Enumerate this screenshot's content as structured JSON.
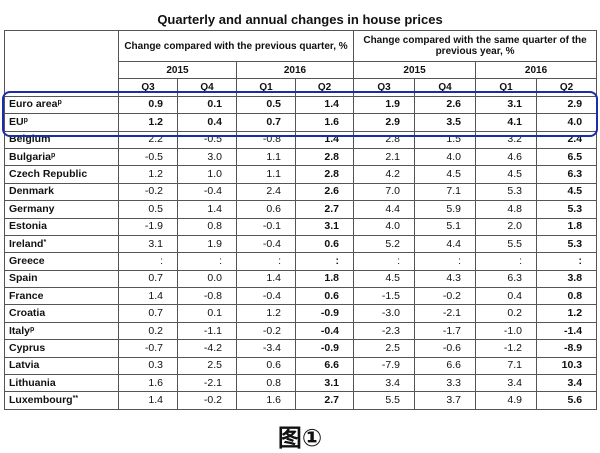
{
  "title": "Quarterly and annual changes in house prices",
  "header": {
    "group1": "Change compared with the previous quarter, %",
    "group2": "Change compared with the same quarter of the previous year, %",
    "year2015": "2015",
    "year2016": "2016",
    "quarters": [
      "Q3",
      "Q4",
      "Q1",
      "Q2",
      "Q3",
      "Q4",
      "Q1",
      "Q2"
    ]
  },
  "rows": [
    {
      "name": "Euro area",
      "sup": "p",
      "values": [
        "0.9",
        "0.1",
        "0.5",
        "1.4",
        "1.9",
        "2.6",
        "3.1",
        "2.9"
      ]
    },
    {
      "name": "EU",
      "sup": "p",
      "values": [
        "1.2",
        "0.4",
        "0.7",
        "1.6",
        "2.9",
        "3.5",
        "4.1",
        "4.0"
      ]
    },
    {
      "name": "Belgium",
      "sup": "",
      "values": [
        "2.2",
        "-0.5",
        "-0.8",
        "1.4",
        "2.8",
        "1.5",
        "3.2",
        "2.4"
      ]
    },
    {
      "name": "Bulgaria",
      "sup": "p",
      "values": [
        "-0.5",
        "3.0",
        "1.1",
        "2.8",
        "2.1",
        "4.0",
        "4.6",
        "6.5"
      ]
    },
    {
      "name": "Czech Republic",
      "sup": "",
      "values": [
        "1.2",
        "1.0",
        "1.1",
        "2.8",
        "4.2",
        "4.5",
        "4.5",
        "6.3"
      ]
    },
    {
      "name": "Denmark",
      "sup": "",
      "values": [
        "-0.2",
        "-0.4",
        "2.4",
        "2.6",
        "7.0",
        "7.1",
        "5.3",
        "4.5"
      ]
    },
    {
      "name": "Germany",
      "sup": "",
      "values": [
        "0.5",
        "1.4",
        "0.6",
        "2.7",
        "4.4",
        "5.9",
        "4.8",
        "5.3"
      ]
    },
    {
      "name": "Estonia",
      "sup": "",
      "values": [
        "-1.9",
        "0.8",
        "-0.1",
        "3.1",
        "4.0",
        "5.1",
        "2.0",
        "1.8"
      ]
    },
    {
      "name": "Ireland",
      "sup": "*",
      "values": [
        "3.1",
        "1.9",
        "-0.4",
        "0.6",
        "5.2",
        "4.4",
        "5.5",
        "5.3"
      ]
    },
    {
      "name": "Greece",
      "sup": "",
      "values": [
        ":",
        ":",
        ":",
        ":",
        ":",
        ":",
        ":",
        ":"
      ]
    },
    {
      "name": "Spain",
      "sup": "",
      "values": [
        "0.7",
        "0.0",
        "1.4",
        "1.8",
        "4.5",
        "4.3",
        "6.3",
        "3.8"
      ]
    },
    {
      "name": "France",
      "sup": "",
      "values": [
        "1.4",
        "-0.8",
        "-0.4",
        "0.6",
        "-1.5",
        "-0.2",
        "0.4",
        "0.8"
      ]
    },
    {
      "name": "Croatia",
      "sup": "",
      "values": [
        "0.7",
        "0.1",
        "1.2",
        "-0.9",
        "-3.0",
        "-2.1",
        "0.2",
        "1.2"
      ]
    },
    {
      "name": "Italy",
      "sup": "p",
      "values": [
        "0.2",
        "-1.1",
        "-0.2",
        "-0.4",
        "-2.3",
        "-1.7",
        "-1.0",
        "-1.4"
      ]
    },
    {
      "name": "Cyprus",
      "sup": "",
      "values": [
        "-0.7",
        "-4.2",
        "-3.4",
        "-0.9",
        "2.5",
        "-0.6",
        "-1.2",
        "-8.9"
      ]
    },
    {
      "name": "Latvia",
      "sup": "",
      "values": [
        "0.3",
        "2.5",
        "0.6",
        "6.6",
        "-7.9",
        "6.6",
        "7.1",
        "10.3"
      ]
    },
    {
      "name": "Lithuania",
      "sup": "",
      "values": [
        "1.6",
        "-2.1",
        "0.8",
        "3.1",
        "3.4",
        "3.3",
        "3.4",
        "3.4"
      ]
    },
    {
      "name": "Luxembourg",
      "sup": "**",
      "values": [
        "1.4",
        "-0.2",
        "1.6",
        "2.7",
        "5.5",
        "3.7",
        "4.9",
        "5.6"
      ]
    }
  ],
  "caption": "图①"
}
